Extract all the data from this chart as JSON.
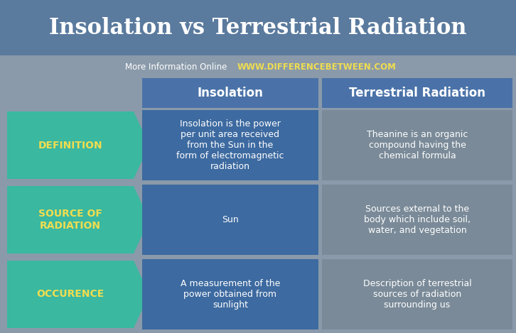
{
  "title": "Insolation vs Terrestrial Radiation",
  "subtitle_normal": "More Information Online",
  "subtitle_url": "WWW.DIFFERENCEBETWEEN.COM",
  "col1_header": "Insolation",
  "col2_header": "Terrestrial Radiation",
  "rows": [
    {
      "label": "DEFINITION",
      "col1": "Insolation is the power\nper unit area received\nfrom the Sun in the\nform of electromagnetic\nradiation",
      "col2": "Theanine is an organic\ncompound having the\nchemical formula"
    },
    {
      "label": "SOURCE OF\nRADIATION",
      "col1": "Sun",
      "col2": "Sources external to the\nbody which include soil,\nwater, and vegetation"
    },
    {
      "label": "OCCURENCE",
      "col1": "A measurement of the\npower obtained from\nsunlight",
      "col2": "Description of terrestrial\nsources of radiation\nsurrounding us"
    }
  ],
  "bg_color": "#8a9aaa",
  "title_bg_color": "#5a7a9e",
  "header_bg_color": "#4a72a8",
  "col1_cell_color": "#3d6aa0",
  "col2_cell_color": "#7a8a98",
  "arrow_color": "#3ab8a0",
  "arrow_text_color": "#f0dd50",
  "title_text_color": "#ffffff",
  "header_text_color": "#ffffff",
  "cell_text_color": "#ffffff",
  "subtitle_text_color": "#ffffff",
  "url_text_color": "#f0dd50",
  "figw": 7.26,
  "figh": 4.69,
  "dpi": 100
}
